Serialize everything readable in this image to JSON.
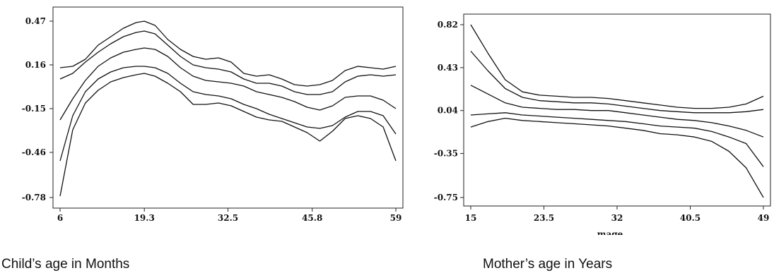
{
  "chart_data": [
    {
      "type": "line",
      "xlabel": "Child’s age in Months",
      "ylabel": "",
      "xlim": [
        6,
        59
      ],
      "ylim": [
        -0.78,
        0.47
      ],
      "x_ticks": [
        "6",
        "19.3",
        "32.5",
        "45.8",
        "59"
      ],
      "y_ticks": [
        "0.47",
        "0.16",
        "-0.15",
        "-0.46",
        "-0.78"
      ],
      "x_tick_values": [
        6,
        19.3,
        32.5,
        45.8,
        59
      ],
      "y_tick_values": [
        0.47,
        0.16,
        -0.15,
        -0.46,
        -0.78
      ],
      "grid": false,
      "x": [
        6,
        8,
        10,
        12,
        14,
        16,
        18,
        19.3,
        21,
        23,
        25,
        27,
        29,
        31,
        33,
        35,
        37,
        39,
        41,
        43,
        45,
        47,
        49,
        51,
        53,
        55,
        57,
        59
      ],
      "series": [
        {
          "values": [
            0.14,
            0.15,
            0.2,
            0.3,
            0.36,
            0.42,
            0.46,
            0.47,
            0.44,
            0.34,
            0.27,
            0.22,
            0.2,
            0.21,
            0.18,
            0.1,
            0.08,
            0.09,
            0.06,
            0.02,
            0.01,
            0.02,
            0.05,
            0.12,
            0.15,
            0.14,
            0.13,
            0.15
          ]
        },
        {
          "values": [
            0.06,
            0.1,
            0.18,
            0.25,
            0.31,
            0.36,
            0.39,
            0.4,
            0.38,
            0.3,
            0.22,
            0.16,
            0.14,
            0.13,
            0.11,
            0.06,
            0.03,
            0.03,
            0.01,
            -0.03,
            -0.05,
            -0.05,
            -0.03,
            0.04,
            0.08,
            0.09,
            0.08,
            0.09
          ]
        },
        {
          "values": [
            -0.23,
            -0.08,
            0.05,
            0.15,
            0.21,
            0.25,
            0.27,
            0.28,
            0.27,
            0.22,
            0.14,
            0.08,
            0.05,
            0.04,
            0.03,
            0.01,
            -0.03,
            -0.05,
            -0.07,
            -0.1,
            -0.14,
            -0.16,
            -0.13,
            -0.07,
            -0.06,
            -0.06,
            -0.09,
            -0.15
          ]
        },
        {
          "values": [
            -0.52,
            -0.2,
            -0.03,
            0.06,
            0.11,
            0.14,
            0.15,
            0.15,
            0.14,
            0.1,
            0.03,
            -0.03,
            -0.05,
            -0.06,
            -0.08,
            -0.12,
            -0.15,
            -0.19,
            -0.22,
            -0.25,
            -0.28,
            -0.29,
            -0.27,
            -0.21,
            -0.17,
            -0.17,
            -0.2,
            -0.33
          ]
        },
        {
          "values": [
            -0.77,
            -0.3,
            -0.11,
            -0.02,
            0.04,
            0.07,
            0.09,
            0.1,
            0.08,
            0.03,
            -0.03,
            -0.12,
            -0.12,
            -0.11,
            -0.13,
            -0.17,
            -0.21,
            -0.23,
            -0.24,
            -0.28,
            -0.32,
            -0.38,
            -0.31,
            -0.22,
            -0.2,
            -0.22,
            -0.28,
            -0.52
          ]
        }
      ]
    },
    {
      "type": "line",
      "xlabel": "Mother’s age in Years",
      "ylabel": "",
      "axis_title": "mage",
      "xlim": [
        15,
        49
      ],
      "ylim": [
        -0.75,
        0.82
      ],
      "x_ticks": [
        "15",
        "23.5",
        "32",
        "40.5",
        "49"
      ],
      "y_ticks": [
        "0.82",
        "0.43",
        "0.04",
        "-0.35",
        "-0.75"
      ],
      "x_tick_values": [
        15,
        23.5,
        32,
        40.5,
        49
      ],
      "y_tick_values": [
        0.82,
        0.43,
        0.04,
        -0.35,
        -0.75
      ],
      "grid": false,
      "x": [
        15,
        17,
        19,
        21,
        23,
        25,
        27,
        29,
        31,
        33,
        35,
        37,
        39,
        41,
        43,
        45,
        47,
        49
      ],
      "series": [
        {
          "values": [
            0.82,
            0.56,
            0.32,
            0.21,
            0.18,
            0.17,
            0.16,
            0.16,
            0.15,
            0.13,
            0.11,
            0.09,
            0.07,
            0.06,
            0.06,
            0.07,
            0.1,
            0.17
          ]
        },
        {
          "values": [
            0.58,
            0.4,
            0.24,
            0.16,
            0.13,
            0.12,
            0.11,
            0.11,
            0.1,
            0.08,
            0.06,
            0.04,
            0.03,
            0.02,
            0.02,
            0.02,
            0.03,
            0.05
          ]
        },
        {
          "values": [
            0.27,
            0.19,
            0.11,
            0.07,
            0.06,
            0.05,
            0.05,
            0.04,
            0.04,
            0.02,
            0.0,
            -0.02,
            -0.04,
            -0.05,
            -0.07,
            -0.1,
            -0.14,
            -0.2
          ]
        },
        {
          "values": [
            0.0,
            0.01,
            0.02,
            0.0,
            -0.01,
            -0.02,
            -0.03,
            -0.04,
            -0.05,
            -0.06,
            -0.08,
            -0.1,
            -0.11,
            -0.12,
            -0.15,
            -0.2,
            -0.26,
            -0.47
          ]
        },
        {
          "values": [
            -0.11,
            -0.06,
            -0.03,
            -0.05,
            -0.06,
            -0.07,
            -0.08,
            -0.09,
            -0.1,
            -0.12,
            -0.14,
            -0.17,
            -0.18,
            -0.2,
            -0.24,
            -0.33,
            -0.48,
            -0.75
          ]
        }
      ]
    }
  ]
}
